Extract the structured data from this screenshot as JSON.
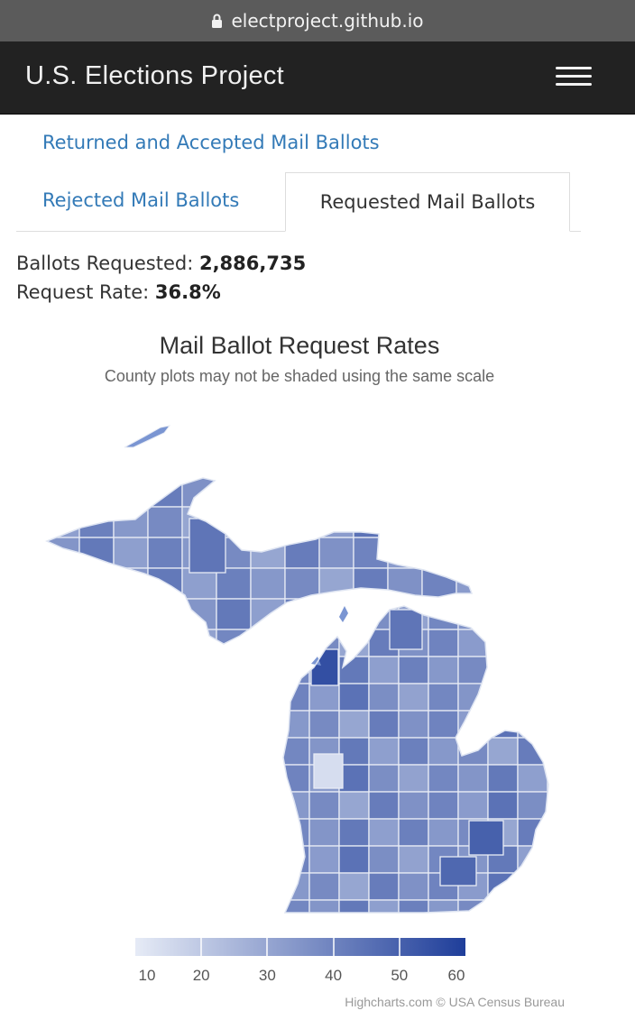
{
  "browser": {
    "url": "electproject.github.io",
    "lock_icon": "lock-icon"
  },
  "navbar": {
    "brand": "U.S. Elections Project",
    "menu_icon": "hamburger-menu-icon"
  },
  "tabs": {
    "returned": "Returned and Accepted Mail Ballots",
    "rejected": "Rejected Mail Ballots",
    "requested": "Requested Mail Ballots",
    "active": "requested"
  },
  "stats": {
    "requested_label": "Ballots Requested:",
    "requested_value": "2,886,735",
    "rate_label": "Request Rate:",
    "rate_value": "36.8%"
  },
  "chart_data": {
    "type": "choropleth",
    "title": "Mail Ballot Request Rates",
    "subtitle": "County plots may not be shaded using the same scale",
    "region": "Michigan counties",
    "color_axis": {
      "min": 10,
      "max": 60,
      "ticks": [
        10,
        20,
        30,
        40,
        50,
        60
      ],
      "min_color": "#e6ebf6",
      "max_color": "#1f3e9a"
    },
    "credits": "Highcharts.com © USA Census Bureau"
  }
}
